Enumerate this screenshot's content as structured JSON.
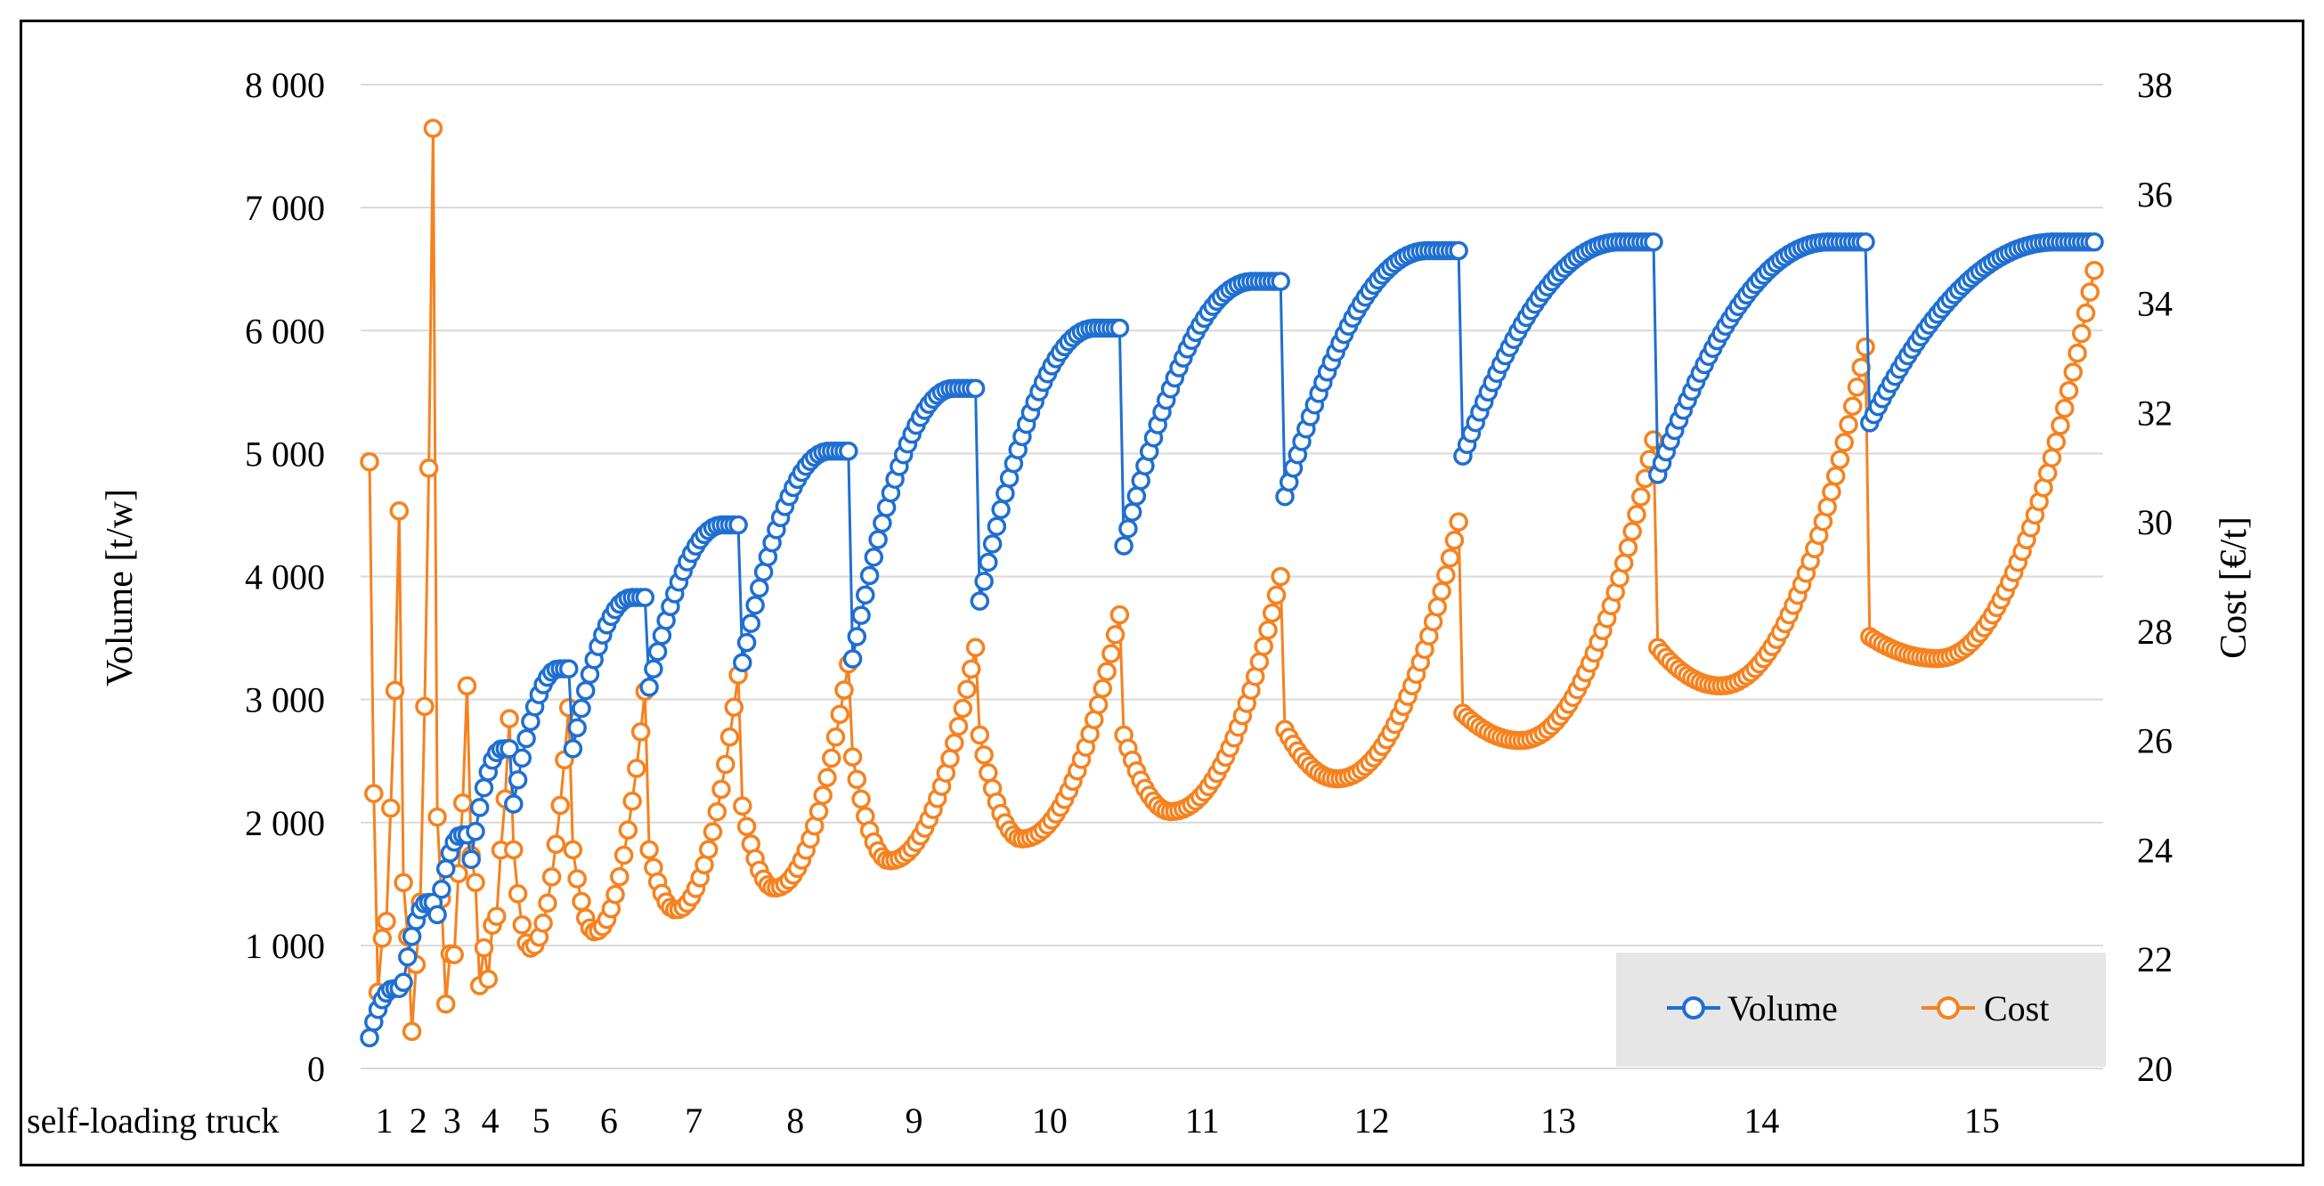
{
  "chart_data": {
    "type": "scatter",
    "title": "",
    "xlabel": "self-loading truck",
    "ylabel": "Volume [t/w]",
    "y2label": "Cost [€/t]",
    "ylim": [
      0,
      8000
    ],
    "y2lim": [
      20,
      38
    ],
    "yticks": [
      "0",
      "1 000",
      "2 000",
      "3 000",
      "4 000",
      "5 000",
      "6 000",
      "7 000",
      "8 000"
    ],
    "y2ticks": [
      "20",
      "22",
      "24",
      "26",
      "28",
      "30",
      "32",
      "34",
      "36",
      "38"
    ],
    "grid": true,
    "legend_position": "bottom-right",
    "colors": {
      "Volume": "#1f6fd1",
      "Cost": "#f5821f",
      "legend_bg": "#e6e6e6"
    },
    "groups": [
      {
        "label": "1",
        "n": 8,
        "vol": [
          250,
          650
        ],
        "cost": [
          31.7,
          21.8,
          30.2
        ]
      },
      {
        "label": "2",
        "n": 8,
        "vol": [
          700,
          1350
        ],
        "cost": [
          24,
          21.1,
          37.2
        ]
      },
      {
        "label": "3",
        "n": 8,
        "vol": [
          1250,
          1900
        ],
        "cost": [
          25.2,
          21.6,
          27.0
        ]
      },
      {
        "label": "4",
        "n": 10,
        "vol": [
          1700,
          2600
        ],
        "cost": [
          24.5,
          21.8,
          26.4
        ]
      },
      {
        "label": "5",
        "n": 14,
        "vol": [
          2150,
          3250
        ],
        "cost": [
          24.0,
          22.2,
          26.6
        ]
      },
      {
        "label": "6",
        "n": 18,
        "vol": [
          2600,
          3830
        ],
        "cost": [
          24.0,
          22.5,
          26.9
        ]
      },
      {
        "label": "7",
        "n": 22,
        "vol": [
          3100,
          4420
        ],
        "cost": [
          24.0,
          22.9,
          27.2
        ]
      },
      {
        "label": "8",
        "n": 26,
        "vol": [
          3300,
          5020
        ],
        "cost": [
          24.8,
          23.3,
          27.4
        ]
      },
      {
        "label": "9",
        "n": 30,
        "vol": [
          3330,
          5530
        ],
        "cost": [
          25.7,
          23.8,
          27.7
        ]
      },
      {
        "label": "10",
        "n": 34,
        "vol": [
          3800,
          6020
        ],
        "cost": [
          26.1,
          24.2,
          28.3
        ]
      },
      {
        "label": "11",
        "n": 38,
        "vol": [
          4250,
          6400
        ],
        "cost": [
          26.1,
          24.7,
          29.0
        ]
      },
      {
        "label": "12",
        "n": 42,
        "vol": [
          4650,
          6650
        ],
        "cost": [
          26.2,
          25.3,
          30.0
        ]
      },
      {
        "label": "13",
        "n": 46,
        "vol": [
          4980,
          6720
        ],
        "cost": [
          26.5,
          26.0,
          31.5
        ]
      },
      {
        "label": "14",
        "n": 50,
        "vol": [
          4830,
          6720
        ],
        "cost": [
          27.7,
          27.0,
          33.2
        ]
      },
      {
        "label": "15",
        "n": 54,
        "vol": [
          5250,
          6720
        ],
        "cost": [
          27.9,
          27.5,
          34.6
        ]
      }
    ],
    "series": [
      {
        "name": "Volume",
        "axis": "left"
      },
      {
        "name": "Cost",
        "axis": "right"
      }
    ]
  }
}
